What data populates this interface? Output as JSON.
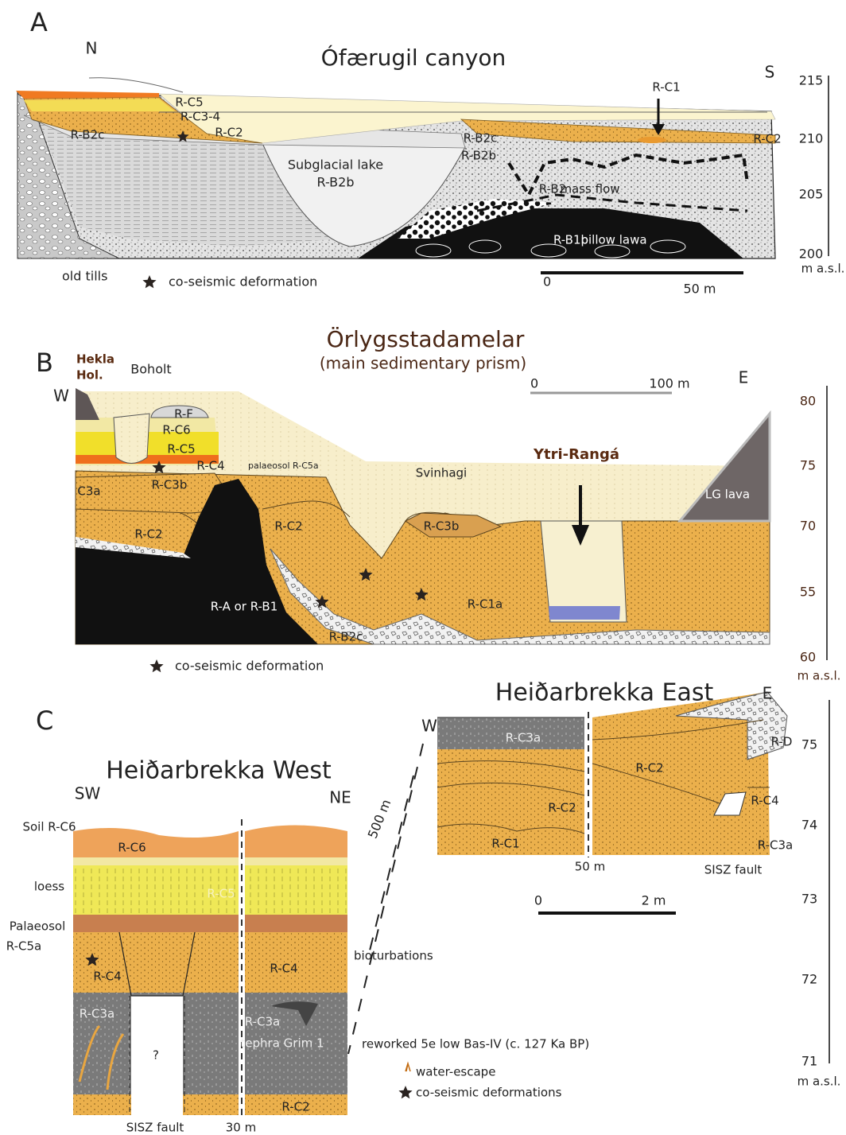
{
  "panel_a": {
    "letter": "A",
    "title": "Ófærugil canyon",
    "compass": [
      "N",
      "S"
    ],
    "units": [
      "R-C5",
      "R-C3-4",
      "R-C2",
      "R-B2c",
      "Subglacial lake",
      "R-B2b",
      "R-B2c",
      "R-B2b",
      "R-C1",
      "R-C2",
      "R-B2",
      "mass flow",
      "R-B1b",
      "pillow lawa"
    ],
    "old_tills": "old tills",
    "legend": "co-seismic deformation",
    "scale": [
      "0",
      "50 m"
    ],
    "elevation": [
      "215",
      "210",
      "205",
      "200"
    ],
    "elevation_unit": "m a.s.l."
  },
  "panel_b": {
    "letter": "B",
    "title": "Örlygsstadamelar",
    "subtitle": "(main sedimentary prism)",
    "compass": [
      "W",
      "E"
    ],
    "places": [
      "Hekla",
      "Hol.",
      "Boholt"
    ],
    "river": "Ytri-Rangá",
    "units": [
      "R-F",
      "R-C6",
      "R-C5",
      "R-C4",
      "palaeosol R-C5a",
      "Svinhagi",
      "C3a",
      "R-C3b",
      "R-C2",
      "R-C2",
      "R-C3b",
      "LG  lava",
      "R-A or R-B1",
      "R-C1a",
      "R-B2c"
    ],
    "scale": [
      "0",
      "100 m"
    ],
    "legend": "co-seismic deformation",
    "elevation": [
      "80",
      "75",
      "70",
      "55",
      "60"
    ],
    "elevation_unit": "m a.s.l."
  },
  "panel_c": {
    "letter": "C",
    "west_title": "Heiðarbrekka West",
    "east_title": "Heiðarbrekka East",
    "compass": [
      "SW",
      "NE",
      "W",
      "E"
    ],
    "west_side_labels": [
      "Soil R-C6",
      "loess",
      "Palaeosol",
      "R-C5a"
    ],
    "west_units": [
      "R-C6",
      "R-C5",
      "R-C4",
      "R-C4",
      "R-C3a",
      "R-C3a",
      "tephra Grim 1",
      "?",
      "R-C2"
    ],
    "east_units": [
      "R-C3a",
      "R-C2",
      "R-C2",
      "R-C1",
      "R-D",
      "R-C4",
      "R-C3a"
    ],
    "distances": [
      "500 m",
      "30 m",
      "50 m"
    ],
    "faults": [
      "SISZ fault",
      "SISZ fault"
    ],
    "notes": [
      "bioturbations",
      "reworked 5e low Bas-IV  (c. 127 Ka  BP)"
    ],
    "legend": [
      "water-escape",
      "co-seismic deformations"
    ],
    "scale": [
      "0",
      "2 m"
    ],
    "elevation": [
      "75",
      "74",
      "73",
      "72",
      "71"
    ],
    "elevation_unit": "m a.s.l."
  }
}
